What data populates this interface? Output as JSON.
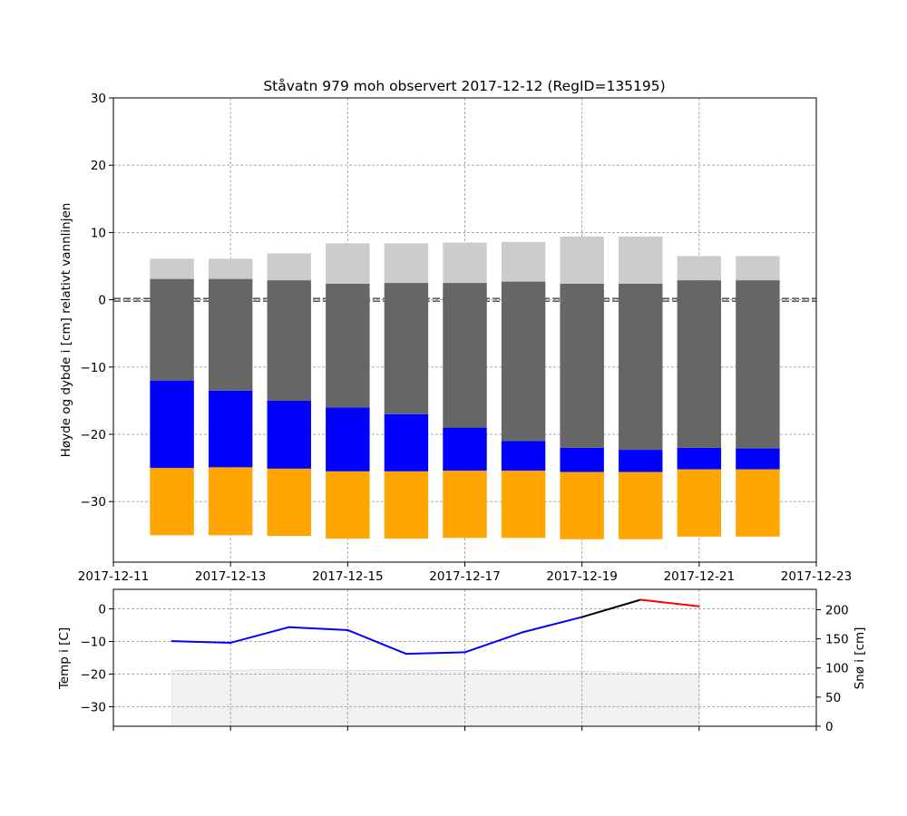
{
  "chart_data": [
    {
      "type": "bar",
      "title": "Ståvatn 979 moh observert 2017-12-12 (RegID=135195)",
      "ylabel": "Høyde og dybde i [cm] relativt vannlinjen",
      "xlabel": "",
      "ylim": [
        -39,
        30
      ],
      "yticks": [
        30,
        20,
        10,
        0,
        -10,
        -20,
        -30
      ],
      "xlim": [
        "2017-12-11",
        "2017-12-23"
      ],
      "xticks": [
        "2017-12-11",
        "2017-12-13",
        "2017-12-15",
        "2017-12-17",
        "2017-12-19",
        "2017-12-21",
        "2017-12-23"
      ],
      "grid": true,
      "waterline": 0,
      "dates": [
        "2017-12-12",
        "2017-12-13",
        "2017-12-14",
        "2017-12-15",
        "2017-12-16",
        "2017-12-17",
        "2017-12-18",
        "2017-12-19",
        "2017-12-20",
        "2017-12-21",
        "2017-12-22"
      ],
      "series": [
        {
          "color": "#ffa500",
          "bottom": [
            -35.0,
            -35.0,
            -35.1,
            -35.5,
            -35.5,
            -35.4,
            -35.4,
            -35.6,
            -35.6,
            -35.2,
            -35.2
          ],
          "top": [
            -25.0,
            -24.9,
            -25.1,
            -25.5,
            -25.5,
            -25.4,
            -25.4,
            -25.6,
            -25.6,
            -25.2,
            -25.2
          ]
        },
        {
          "color": "#0000ff",
          "bottom": [
            -25.0,
            -24.9,
            -25.1,
            -25.5,
            -25.5,
            -25.4,
            -25.4,
            -25.6,
            -25.6,
            -25.2,
            -25.2
          ],
          "top": [
            -12.0,
            -13.5,
            -15.0,
            -16.0,
            -17.0,
            -19.0,
            -21.0,
            -22.0,
            -22.3,
            -22.0,
            -22.1
          ]
        },
        {
          "color": "#666666",
          "bottom": [
            -12.0,
            -13.5,
            -15.0,
            -16.0,
            -17.0,
            -19.0,
            -21.0,
            -22.0,
            -22.3,
            -22.0,
            -22.1
          ],
          "top": [
            3.1,
            3.1,
            2.9,
            2.4,
            2.5,
            2.5,
            2.7,
            2.4,
            2.4,
            2.9,
            2.9
          ]
        },
        {
          "color": "#cccccc",
          "bottom": [
            3.1,
            3.1,
            2.9,
            2.4,
            2.5,
            2.5,
            2.7,
            2.4,
            2.4,
            2.9,
            2.9
          ],
          "top": [
            6.1,
            6.1,
            6.9,
            8.4,
            8.4,
            8.5,
            8.6,
            9.4,
            9.4,
            6.5,
            6.5
          ]
        }
      ]
    },
    {
      "type": "line",
      "ylabel": "Temp i [C]",
      "ylabel_right": "Snø i [cm]",
      "ylim": [
        -36,
        6
      ],
      "yticks": [
        0,
        -10,
        -20,
        -30
      ],
      "ylim_right": [
        0,
        235
      ],
      "yticks_right": [
        200,
        150,
        100,
        50,
        0
      ],
      "xlim": [
        "2017-12-11",
        "2017-12-23"
      ],
      "grid": true,
      "temperature": {
        "dates": [
          "2017-12-12",
          "2017-12-13",
          "2017-12-14",
          "2017-12-15",
          "2017-12-16",
          "2017-12-17",
          "2017-12-18",
          "2017-12-19",
          "2017-12-20",
          "2017-12-21"
        ],
        "values": [
          -9.9,
          -10.4,
          -5.6,
          -6.5,
          -13.8,
          -13.3,
          -7.1,
          -2.5,
          2.8,
          0.8
        ],
        "segment_colors": [
          "#0000ff",
          "#0000ff",
          "#0000ff",
          "#0000ff",
          "#0000ff",
          "#0000ff",
          "#0000ff",
          "#000000",
          "#ff0000"
        ]
      },
      "snow": {
        "dates": [
          "2017-12-12",
          "2017-12-13",
          "2017-12-14",
          "2017-12-15",
          "2017-12-16",
          "2017-12-17",
          "2017-12-18",
          "2017-12-19",
          "2017-12-20",
          "2017-12-21"
        ],
        "values": [
          96,
          96,
          98,
          96,
          96,
          96,
          95,
          95,
          92,
          90
        ],
        "color": "#f1f1f1"
      }
    }
  ]
}
